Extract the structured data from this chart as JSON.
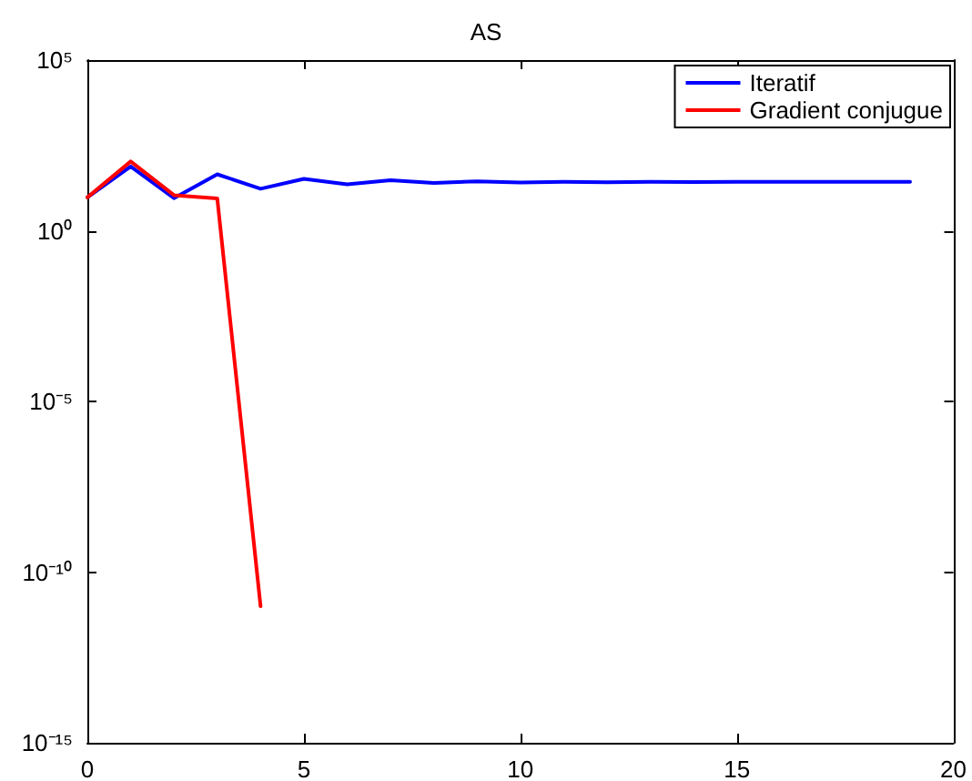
{
  "chart_data": {
    "type": "line",
    "title": "AS",
    "log": "y",
    "grid": false,
    "legend": "top right",
    "marker": "none",
    "line_style": "solid",
    "xlim": [
      0,
      20
    ],
    "xticks": [
      0,
      5,
      10,
      15,
      20
    ],
    "ylim": [
      1e-15,
      100000
    ],
    "yticks": [
      {
        "value": 1e-15,
        "label": "10⁻¹⁵"
      },
      {
        "value": 1e-10,
        "label": "10⁻¹⁰"
      },
      {
        "value": 1e-05,
        "label": "10⁻⁵"
      },
      {
        "value": 1,
        "label": "10⁰"
      },
      {
        "value": 100000,
        "label": "10⁵"
      }
    ],
    "series": [
      {
        "name": "Iteratif",
        "color": "#0000ff",
        "x": [
          0,
          1,
          2,
          3,
          4,
          5,
          6,
          7,
          8,
          9,
          10,
          11,
          12,
          13,
          14,
          15,
          16,
          17,
          18,
          19
        ],
        "values": [
          9.5,
          76,
          9,
          45,
          17,
          33,
          23,
          30,
          25,
          28,
          26,
          27,
          26.5,
          27,
          26.8,
          27,
          27,
          27,
          27,
          27
        ]
      },
      {
        "name": "Gradient conjugue",
        "color": "#ff0000",
        "x": [
          0,
          1,
          2,
          3,
          4
        ],
        "values": [
          9.5,
          107,
          11,
          8.8,
          1e-11
        ]
      }
    ]
  }
}
